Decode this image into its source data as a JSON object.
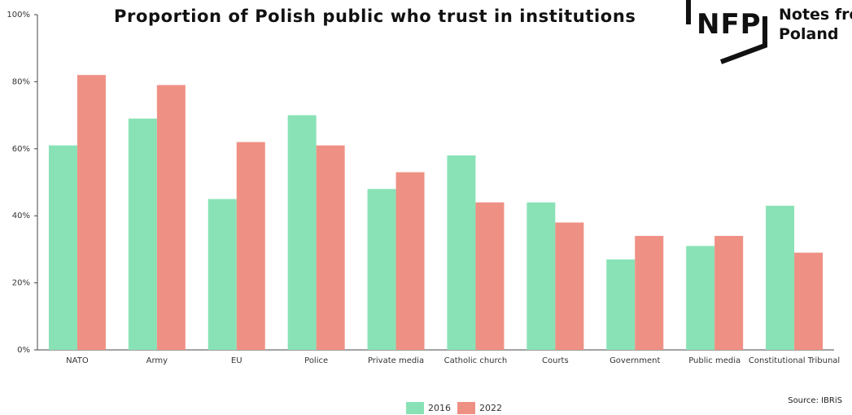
{
  "colors": {
    "series_2016": "#89e2b6",
    "series_2022": "#ef9084"
  },
  "title": "Proportion of Polish public who trust in institutions",
  "logo": {
    "mark": "NFP",
    "line1": "Notes from",
    "line2": "Poland"
  },
  "source": "Source: IBRiS",
  "chart_data": {
    "type": "bar",
    "title": "Proportion of Polish public who trust in institutions",
    "xlabel": "",
    "ylabel": "",
    "categories": [
      "NATO",
      "Army",
      "EU",
      "Police",
      "Private media",
      "Catholic church",
      "Courts",
      "Government",
      "Public media",
      "Constitutional Tribunal"
    ],
    "series": [
      {
        "name": "2016",
        "values": [
          61,
          69,
          45,
          70,
          48,
          58,
          44,
          27,
          31,
          43
        ]
      },
      {
        "name": "2022",
        "values": [
          82,
          79,
          62,
          61,
          53,
          44,
          38,
          34,
          34,
          29
        ]
      }
    ],
    "ylim": [
      0,
      100
    ],
    "yticks": [
      "0%",
      "20%",
      "40%",
      "60%",
      "80%",
      "100%"
    ],
    "grid": false,
    "legend": "bottom-center"
  }
}
